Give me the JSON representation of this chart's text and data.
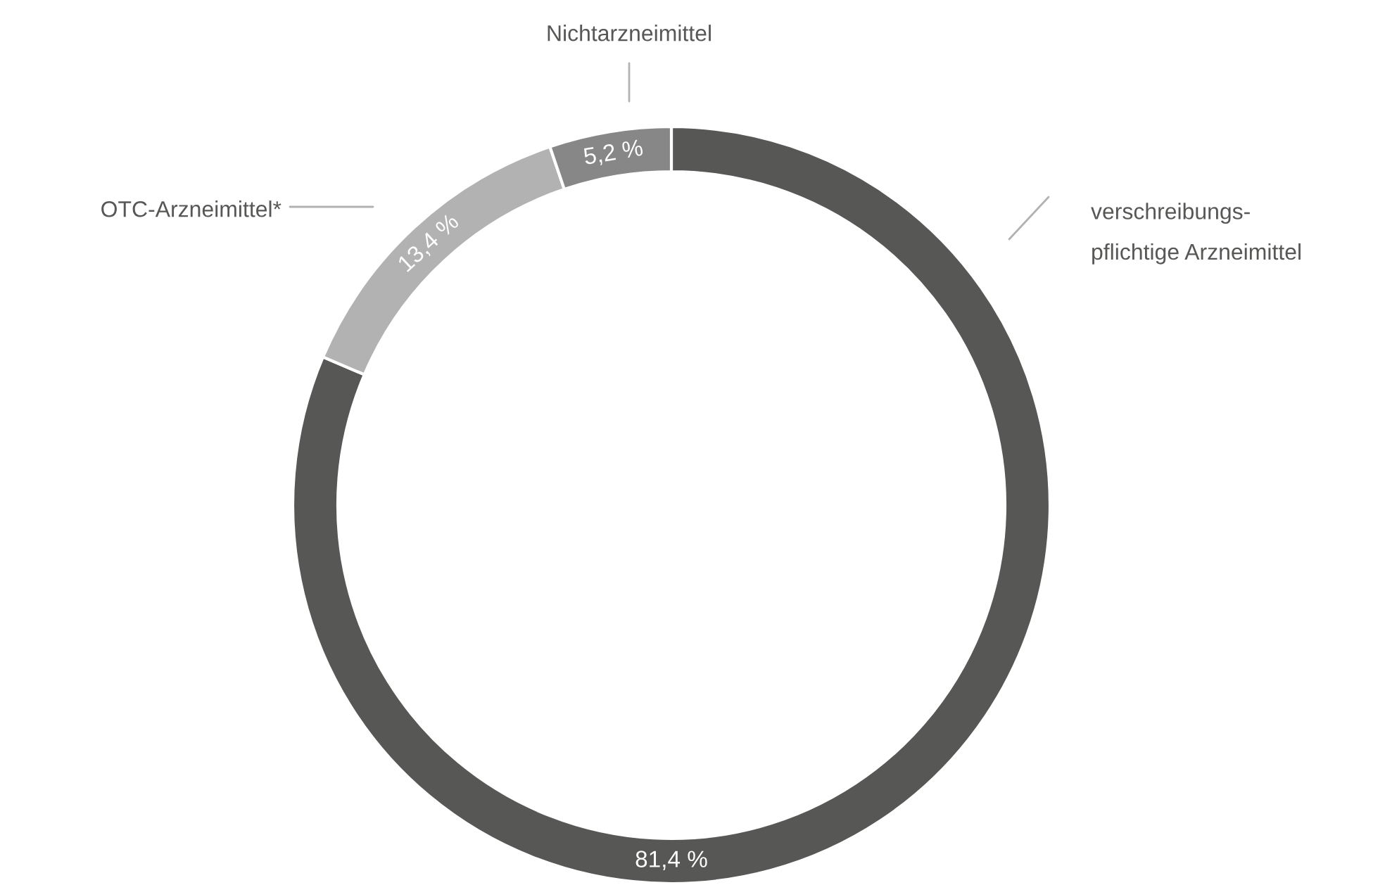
{
  "chart_data": {
    "type": "donut",
    "categories": [
      "verschreibungs-\npflichtige Arzneimittel",
      "OTC-Arzneimittel*",
      "Nichtarzneimittel"
    ],
    "values": [
      81.4,
      13.4,
      5.2
    ],
    "value_labels": [
      "81,4 %",
      "13,4 %",
      "5,2 %"
    ],
    "colors": [
      "#575756",
      "#b2b2b2",
      "#878787"
    ],
    "legend": false
  }
}
